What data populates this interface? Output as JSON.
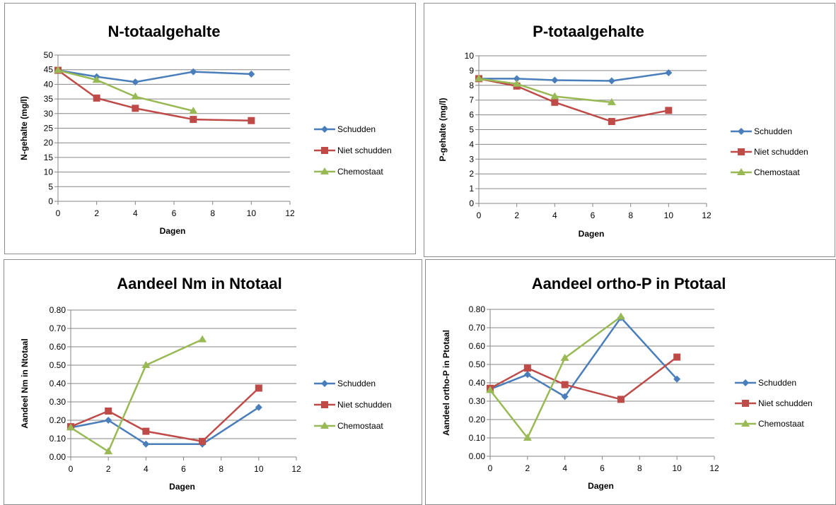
{
  "chart_data": [
    {
      "type": "line",
      "title": "N-totaalgehalte",
      "xlabel": "Dagen",
      "ylabel": "N-gehalte (mg/l)",
      "xlim": [
        0,
        12
      ],
      "ylim": [
        0,
        50
      ],
      "xticks": [
        0,
        2,
        4,
        6,
        8,
        10,
        12
      ],
      "yticks": [
        0,
        5,
        10,
        15,
        20,
        25,
        30,
        35,
        40,
        45,
        50
      ],
      "ytick_labels": [
        "0",
        "5",
        "10",
        "15",
        "20",
        "25",
        "30",
        "35",
        "40",
        "45",
        "50"
      ],
      "grid": true,
      "legend_position": "right",
      "series": [
        {
          "name": "Schudden",
          "color": "#4a7ebb",
          "marker": "diamond",
          "x": [
            0,
            2,
            4,
            7,
            10
          ],
          "y": [
            44.8,
            42.6,
            40.8,
            44.3,
            43.5
          ]
        },
        {
          "name": "Niet schudden",
          "color": "#be4b48",
          "marker": "square",
          "x": [
            0,
            2,
            4,
            7,
            10
          ],
          "y": [
            44.8,
            35.3,
            31.8,
            28.0,
            27.6
          ]
        },
        {
          "name": "Chemostaat",
          "color": "#98b954",
          "marker": "triangle",
          "x": [
            0,
            2,
            4,
            7
          ],
          "y": [
            44.8,
            41.5,
            35.8,
            30.9
          ]
        }
      ]
    },
    {
      "type": "line",
      "title": "P-totaalgehalte",
      "xlabel": "Dagen",
      "ylabel": "P-gehalte (mg/l)",
      "xlim": [
        0,
        12
      ],
      "ylim": [
        0,
        10
      ],
      "xticks": [
        0,
        2,
        4,
        6,
        8,
        10,
        12
      ],
      "yticks": [
        0,
        1,
        2,
        3,
        4,
        5,
        6,
        7,
        8,
        9,
        10
      ],
      "ytick_labels": [
        "0",
        "1",
        "2",
        "3",
        "4",
        "5",
        "6",
        "7",
        "8",
        "9",
        "10"
      ],
      "grid": true,
      "legend_position": "right",
      "series": [
        {
          "name": "Schudden",
          "color": "#4a7ebb",
          "marker": "diamond",
          "x": [
            0,
            2,
            4,
            7,
            10
          ],
          "y": [
            8.45,
            8.45,
            8.35,
            8.3,
            8.85
          ]
        },
        {
          "name": "Niet schudden",
          "color": "#be4b48",
          "marker": "square",
          "x": [
            0,
            2,
            4,
            7,
            10
          ],
          "y": [
            8.45,
            7.95,
            6.85,
            5.55,
            6.3
          ]
        },
        {
          "name": "Chemostaat",
          "color": "#98b954",
          "marker": "triangle",
          "x": [
            0,
            2,
            4,
            7
          ],
          "y": [
            8.45,
            8.1,
            7.25,
            6.85
          ]
        }
      ]
    },
    {
      "type": "line",
      "title": "Aandeel Nm in Ntotaal",
      "xlabel": "Dagen",
      "ylabel": "Aandeel Nm in Ntotaal",
      "xlim": [
        0,
        12
      ],
      "ylim": [
        0,
        0.8
      ],
      "xticks": [
        0,
        2,
        4,
        6,
        8,
        10,
        12
      ],
      "yticks": [
        0,
        0.1,
        0.2,
        0.3,
        0.4,
        0.5,
        0.6,
        0.7,
        0.8
      ],
      "ytick_labels": [
        "0.00",
        "0.10",
        "0.20",
        "0.30",
        "0.40",
        "0.50",
        "0.60",
        "0.70",
        "0.80"
      ],
      "grid": true,
      "legend_position": "right",
      "series": [
        {
          "name": "Schudden",
          "color": "#4a7ebb",
          "marker": "diamond",
          "x": [
            0,
            2,
            4,
            7,
            10
          ],
          "y": [
            0.16,
            0.2,
            0.07,
            0.07,
            0.27
          ]
        },
        {
          "name": "Niet schudden",
          "color": "#be4b48",
          "marker": "square",
          "x": [
            0,
            2,
            4,
            7,
            10
          ],
          "y": [
            0.165,
            0.25,
            0.14,
            0.085,
            0.375
          ]
        },
        {
          "name": "Chemostaat",
          "color": "#98b954",
          "marker": "triangle",
          "x": [
            0,
            2,
            4,
            7
          ],
          "y": [
            0.16,
            0.03,
            0.5,
            0.64
          ]
        }
      ]
    },
    {
      "type": "line",
      "title": "Aandeel ortho-P in Ptotaal",
      "xlabel": "Dagen",
      "ylabel": "Aandeel ortho-P in Ptotaal",
      "xlim": [
        0,
        12
      ],
      "ylim": [
        0,
        0.8
      ],
      "xticks": [
        0,
        2,
        4,
        6,
        8,
        10,
        12
      ],
      "yticks": [
        0,
        0.1,
        0.2,
        0.3,
        0.4,
        0.5,
        0.6,
        0.7,
        0.8
      ],
      "ytick_labels": [
        "0.00",
        "0.10",
        "0.20",
        "0.30",
        "0.40",
        "0.50",
        "0.60",
        "0.70",
        "0.80"
      ],
      "grid": true,
      "legend_position": "right",
      "series": [
        {
          "name": "Schudden",
          "color": "#4a7ebb",
          "marker": "diamond",
          "x": [
            0,
            2,
            4,
            7,
            10
          ],
          "y": [
            0.365,
            0.445,
            0.325,
            0.755,
            0.42
          ]
        },
        {
          "name": "Niet schudden",
          "color": "#be4b48",
          "marker": "square",
          "x": [
            0,
            2,
            4,
            7,
            10
          ],
          "y": [
            0.37,
            0.48,
            0.39,
            0.31,
            0.54
          ]
        },
        {
          "name": "Chemostaat",
          "color": "#98b954",
          "marker": "triangle",
          "x": [
            0,
            2,
            4,
            7
          ],
          "y": [
            0.36,
            0.1,
            0.535,
            0.76
          ]
        }
      ]
    }
  ]
}
